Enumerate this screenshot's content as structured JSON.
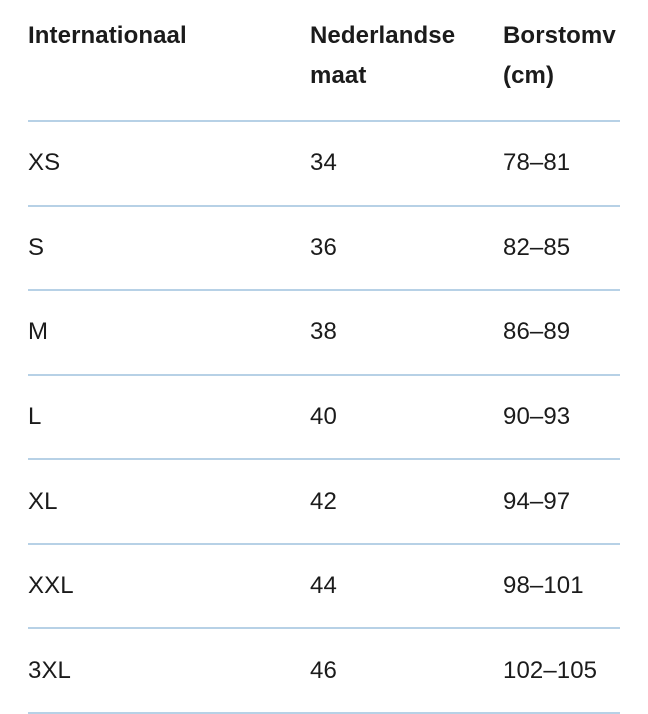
{
  "theme": {
    "background_color": "#ffffff",
    "text_color": "#1b1b1b",
    "divider_color": "#b7d1e6"
  },
  "table": {
    "headers": [
      {
        "lines": [
          "Internationaal",
          ""
        ]
      },
      {
        "lines": [
          "Nederlandse",
          "maat"
        ]
      },
      {
        "lines": [
          "Borstomv",
          "(cm)"
        ]
      }
    ],
    "rows": [
      {
        "international": "XS",
        "dutch": "34",
        "chest": "78–81"
      },
      {
        "international": "S",
        "dutch": "36",
        "chest": "82–85"
      },
      {
        "international": "M",
        "dutch": "38",
        "chest": "86–89"
      },
      {
        "international": "L",
        "dutch": "40",
        "chest": "90–93"
      },
      {
        "international": "XL",
        "dutch": "42",
        "chest": "94–97"
      },
      {
        "international": "XXL",
        "dutch": "44",
        "chest": "98–101"
      },
      {
        "international": "3XL",
        "dutch": "46",
        "chest": "102–105"
      }
    ]
  }
}
